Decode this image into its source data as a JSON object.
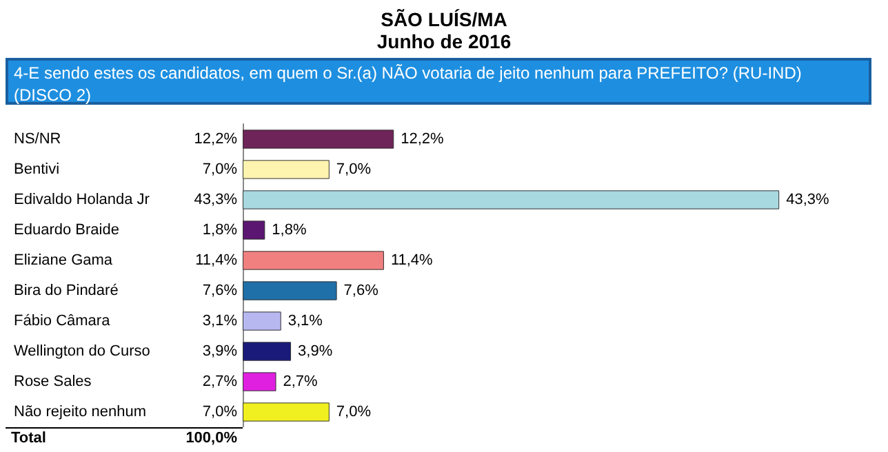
{
  "chart_data": {
    "type": "bar",
    "orientation": "horizontal",
    "title": "SÃO LUÍS/MA",
    "subtitle": "Junho de 2016",
    "annotations": [
      "4-E sendo estes os candidatos, em quem o Sr.(a) NÃO votaria de jeito nenhum para PREFEITO? (RU-IND) (DISCO 2)",
      "Total",
      "100,0%"
    ],
    "categories": [
      "NS/NR",
      "Bentivi",
      "Edivaldo Holanda Jr",
      "Eduardo Braide",
      "Eliziane Gama",
      "Bira do Pindaré",
      "Fábio Câmara",
      "Wellington do Curso",
      "Rose Sales",
      "Não rejeito nenhum"
    ],
    "values": [
      12.2,
      7.0,
      43.3,
      1.8,
      11.4,
      7.6,
      3.1,
      3.9,
      2.7,
      7.0
    ],
    "value_labels": [
      "12,2%",
      "7,0%",
      "43,3%",
      "1,8%",
      "11,4%",
      "7,6%",
      "3,1%",
      "3,9%",
      "2,7%",
      "7,0%"
    ],
    "colors": [
      "#6e2458",
      "#fff3b0",
      "#a8d8e0",
      "#5a1670",
      "#f08080",
      "#1f6fa8",
      "#b8b8f0",
      "#1a1a7a",
      "#e020e0",
      "#f0f020"
    ],
    "grid": false
  }
}
